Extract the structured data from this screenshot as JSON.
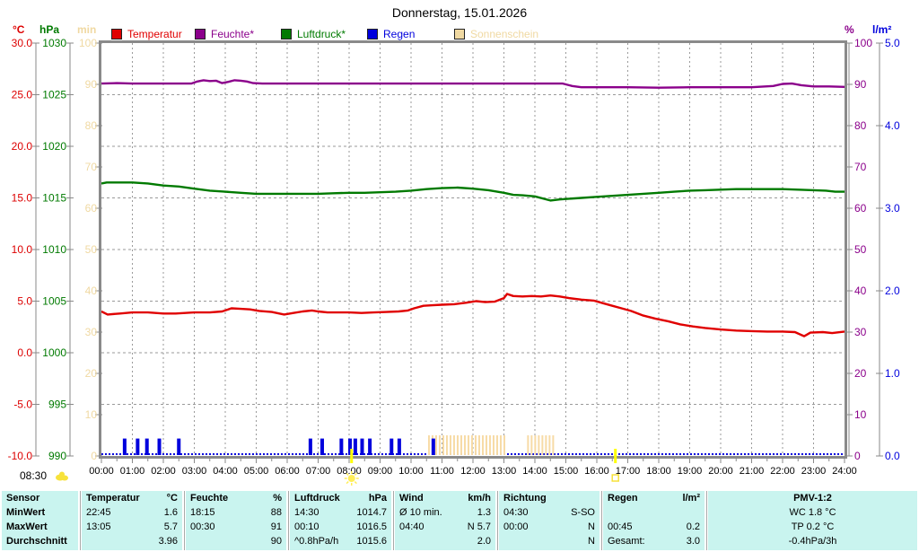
{
  "title": "Donnerstag, 15.01.2026",
  "legend": [
    {
      "label": "Temperatur",
      "color": "#e00000",
      "x": 124
    },
    {
      "label": "Feuchte*",
      "color": "#8b008b",
      "x": 217
    },
    {
      "label": "Luftdruck*",
      "color": "#007a00",
      "x": 313
    },
    {
      "label": "Regen",
      "color": "#0000dd",
      "x": 409
    },
    {
      "label": "Sonnenschein",
      "color": "#f0d9a2",
      "x": 506
    }
  ],
  "axes": {
    "left": [
      {
        "unit": "°C",
        "color": "#dd0000",
        "min": -10,
        "max": 30,
        "line_x": 40,
        "tick_labels": [
          "30.0",
          "25.0",
          "20.0",
          "15.0",
          "10.0",
          "5.0",
          "0.0",
          "-5.0",
          "-10.0"
        ]
      },
      {
        "unit": "hPa",
        "color": "#007a00",
        "min": 990,
        "max": 1030,
        "line_x": 78,
        "tick_labels": [
          "1030",
          "1025",
          "1020",
          "1015",
          "1010",
          "1005",
          "1000",
          "995",
          "990"
        ]
      },
      {
        "unit": "min",
        "color": "#f0d9a2",
        "min": 0,
        "max": 100,
        "line_x": 110,
        "tick_labels": [
          "100",
          "90",
          "80",
          "70",
          "60",
          "50",
          "40",
          "30",
          "20",
          "10",
          "0"
        ]
      }
    ],
    "right": [
      {
        "unit": "%",
        "color": "#8b008b",
        "min": 0,
        "max": 100,
        "line_x": 946,
        "tick_labels": [
          "100",
          "90",
          "80",
          "70",
          "60",
          "50",
          "40",
          "30",
          "20",
          "10",
          "0"
        ]
      },
      {
        "unit": "l/m²",
        "color": "#0000dd",
        "min": 0,
        "max": 5,
        "line_x": 980,
        "tick_labels": [
          "5.0",
          "4.0",
          "3.0",
          "2.0",
          "1.0",
          "0.0"
        ]
      }
    ]
  },
  "x_labels": [
    "00:00",
    "01:00",
    "02:00",
    "03:00",
    "04:00",
    "05:00",
    "06:00",
    "07:00",
    "08:00",
    "09:00",
    "10:00",
    "11:00",
    "12:00",
    "13:00",
    "14:00",
    "15:00",
    "16:00",
    "17:00",
    "18:00",
    "19:00",
    "20:00",
    "21:00",
    "22:00",
    "23:00",
    "24:00"
  ],
  "sun": {
    "time_label": "08:30",
    "sunrise_h": 8.08,
    "sunset_h": 16.6
  },
  "chart_data": {
    "type": "line",
    "x_unit": "hours",
    "x_range": [
      0,
      24
    ],
    "grid": {
      "vertical_every_h": 1,
      "horizontal_every_degC": 5
    },
    "series": [
      {
        "name": "Temperatur",
        "unit": "°C",
        "color": "#e00000",
        "axis_min": -10,
        "axis_max": 30,
        "points": [
          [
            0,
            4.0
          ],
          [
            0.2,
            3.7
          ],
          [
            0.6,
            3.8
          ],
          [
            1,
            3.9
          ],
          [
            1.5,
            3.9
          ],
          [
            2,
            3.8
          ],
          [
            2.4,
            3.8
          ],
          [
            3,
            3.9
          ],
          [
            3.5,
            3.9
          ],
          [
            3.9,
            4.0
          ],
          [
            4.2,
            4.3
          ],
          [
            4.5,
            4.25
          ],
          [
            4.8,
            4.2
          ],
          [
            5.1,
            4.05
          ],
          [
            5.5,
            3.95
          ],
          [
            5.9,
            3.7
          ],
          [
            6.2,
            3.85
          ],
          [
            6.5,
            4.0
          ],
          [
            6.8,
            4.1
          ],
          [
            7,
            4.0
          ],
          [
            7.3,
            3.9
          ],
          [
            7.7,
            3.9
          ],
          [
            8,
            3.9
          ],
          [
            8.4,
            3.85
          ],
          [
            8.8,
            3.9
          ],
          [
            9.2,
            3.95
          ],
          [
            9.6,
            4.0
          ],
          [
            9.9,
            4.1
          ],
          [
            10.1,
            4.3
          ],
          [
            10.4,
            4.55
          ],
          [
            10.7,
            4.6
          ],
          [
            11,
            4.65
          ],
          [
            11.4,
            4.7
          ],
          [
            11.8,
            4.85
          ],
          [
            12.1,
            5.0
          ],
          [
            12.4,
            4.9
          ],
          [
            12.7,
            4.95
          ],
          [
            13,
            5.3
          ],
          [
            13.1,
            5.7
          ],
          [
            13.3,
            5.5
          ],
          [
            13.6,
            5.45
          ],
          [
            13.9,
            5.5
          ],
          [
            14.2,
            5.45
          ],
          [
            14.5,
            5.55
          ],
          [
            14.8,
            5.45
          ],
          [
            15.1,
            5.3
          ],
          [
            15.5,
            5.15
          ],
          [
            15.9,
            5.05
          ],
          [
            16.2,
            4.8
          ],
          [
            16.5,
            4.55
          ],
          [
            16.8,
            4.3
          ],
          [
            17.1,
            4.05
          ],
          [
            17.5,
            3.6
          ],
          [
            17.9,
            3.3
          ],
          [
            18.3,
            3.05
          ],
          [
            18.7,
            2.75
          ],
          [
            19.1,
            2.55
          ],
          [
            19.5,
            2.4
          ],
          [
            20,
            2.25
          ],
          [
            20.5,
            2.15
          ],
          [
            21,
            2.1
          ],
          [
            21.5,
            2.05
          ],
          [
            22,
            2.05
          ],
          [
            22.4,
            2.0
          ],
          [
            22.7,
            1.6
          ],
          [
            22.9,
            1.95
          ],
          [
            23.3,
            2.0
          ],
          [
            23.6,
            1.9
          ],
          [
            24,
            2.05
          ]
        ]
      },
      {
        "name": "Feuchte",
        "unit": "%",
        "color": "#8b008b",
        "axis_min": 0,
        "axis_max": 100,
        "points": [
          [
            0,
            90.2
          ],
          [
            0.5,
            90.3
          ],
          [
            1,
            90.2
          ],
          [
            2,
            90.2
          ],
          [
            2.9,
            90.2
          ],
          [
            3.1,
            90.7
          ],
          [
            3.3,
            91.0
          ],
          [
            3.5,
            90.8
          ],
          [
            3.7,
            90.9
          ],
          [
            3.9,
            90.3
          ],
          [
            4.1,
            90.6
          ],
          [
            4.3,
            91.0
          ],
          [
            4.5,
            90.9
          ],
          [
            4.7,
            90.7
          ],
          [
            4.9,
            90.3
          ],
          [
            5.2,
            90.2
          ],
          [
            6,
            90.2
          ],
          [
            7,
            90.2
          ],
          [
            8,
            90.2
          ],
          [
            9,
            90.2
          ],
          [
            10,
            90.2
          ],
          [
            11,
            90.2
          ],
          [
            12,
            90.2
          ],
          [
            13,
            90.2
          ],
          [
            14,
            90.2
          ],
          [
            14.9,
            90.2
          ],
          [
            15.2,
            89.6
          ],
          [
            15.5,
            89.3
          ],
          [
            16,
            89.3
          ],
          [
            17,
            89.3
          ],
          [
            18,
            89.2
          ],
          [
            19,
            89.3
          ],
          [
            20,
            89.3
          ],
          [
            21,
            89.3
          ],
          [
            21.7,
            89.6
          ],
          [
            22,
            90.1
          ],
          [
            22.3,
            90.2
          ],
          [
            22.6,
            89.8
          ],
          [
            23,
            89.5
          ],
          [
            23.5,
            89.5
          ],
          [
            24,
            89.4
          ]
        ]
      },
      {
        "name": "Luftdruck",
        "unit": "hPa",
        "color": "#007a00",
        "axis_min": 990,
        "axis_max": 1030,
        "points": [
          [
            0,
            1016.4
          ],
          [
            0.17,
            1016.5
          ],
          [
            0.5,
            1016.5
          ],
          [
            1,
            1016.5
          ],
          [
            1.5,
            1016.4
          ],
          [
            2,
            1016.2
          ],
          [
            2.5,
            1016.1
          ],
          [
            3,
            1015.9
          ],
          [
            3.5,
            1015.7
          ],
          [
            4,
            1015.6
          ],
          [
            4.5,
            1015.5
          ],
          [
            5,
            1015.4
          ],
          [
            5.5,
            1015.4
          ],
          [
            6,
            1015.4
          ],
          [
            6.5,
            1015.4
          ],
          [
            7,
            1015.4
          ],
          [
            7.5,
            1015.45
          ],
          [
            8,
            1015.5
          ],
          [
            8.5,
            1015.5
          ],
          [
            9,
            1015.55
          ],
          [
            9.5,
            1015.6
          ],
          [
            10,
            1015.7
          ],
          [
            10.5,
            1015.85
          ],
          [
            11,
            1015.95
          ],
          [
            11.5,
            1016.0
          ],
          [
            12,
            1015.9
          ],
          [
            12.5,
            1015.75
          ],
          [
            13,
            1015.5
          ],
          [
            13.3,
            1015.3
          ],
          [
            13.6,
            1015.25
          ],
          [
            14,
            1015.15
          ],
          [
            14.5,
            1014.75
          ],
          [
            14.8,
            1014.85
          ],
          [
            15,
            1014.9
          ],
          [
            15.5,
            1015.0
          ],
          [
            16,
            1015.1
          ],
          [
            16.5,
            1015.2
          ],
          [
            17,
            1015.3
          ],
          [
            17.5,
            1015.4
          ],
          [
            18,
            1015.5
          ],
          [
            18.5,
            1015.6
          ],
          [
            19,
            1015.7
          ],
          [
            19.5,
            1015.75
          ],
          [
            20,
            1015.8
          ],
          [
            20.5,
            1015.85
          ],
          [
            21,
            1015.85
          ],
          [
            21.5,
            1015.85
          ],
          [
            22,
            1015.85
          ],
          [
            22.5,
            1015.8
          ],
          [
            23,
            1015.75
          ],
          [
            23.4,
            1015.7
          ],
          [
            23.7,
            1015.6
          ],
          [
            24,
            1015.6
          ]
        ]
      }
    ],
    "rain_events": {
      "name": "Regen",
      "unit": "l/m²",
      "color": "#0000dd",
      "amount_each": 0.2,
      "times_h": [
        0.75,
        1.17,
        1.47,
        1.87,
        2.5,
        6.75,
        7.13,
        7.75,
        8.03,
        8.2,
        8.42,
        8.67,
        9.37,
        9.62,
        10.72
      ],
      "total": 3.0
    },
    "sunshine_intervals": {
      "name": "Sonnenschein",
      "unit": "min",
      "color": "#f7dba6",
      "intervals_h": [
        [
          10.55,
          13.05
        ],
        [
          13.75,
          14.6
        ]
      ]
    }
  },
  "table": {
    "row_labels": [
      "Sensor",
      "MinWert",
      "MaxWert",
      "Durchschnitt"
    ],
    "columns": [
      {
        "name": "Temperatur",
        "unit": "°C",
        "rows": [
          [
            "22:45",
            "1.6"
          ],
          [
            "13:05",
            "5.7"
          ],
          [
            "",
            "3.96"
          ]
        ]
      },
      {
        "name": "Feuchte",
        "unit": "%",
        "rows": [
          [
            "18:15",
            "88"
          ],
          [
            "00:30",
            "91"
          ],
          [
            "",
            "90"
          ]
        ]
      },
      {
        "name": "Luftdruck",
        "unit": "hPa",
        "rows": [
          [
            "14:30",
            "1014.7"
          ],
          [
            "00:10",
            "1016.5"
          ],
          [
            "^0.8hPa/h",
            "1015.6"
          ]
        ]
      },
      {
        "name": "Wind",
        "unit": "km/h",
        "rows": [
          [
            "Ø 10 min.",
            "1.3"
          ],
          [
            "04:40",
            "N 5.7"
          ],
          [
            "",
            "2.0"
          ]
        ]
      },
      {
        "name": "Richtung",
        "unit": "",
        "rows": [
          [
            "04:30",
            "S-SO"
          ],
          [
            "00:00",
            "N"
          ],
          [
            "",
            "N"
          ]
        ]
      },
      {
        "name": "Regen",
        "unit": "l/m²",
        "rows": [
          [
            "",
            ""
          ],
          [
            "00:45",
            "0.2"
          ],
          [
            "Gesamt:",
            "3.0"
          ]
        ]
      },
      {
        "name": "PMV-1:2",
        "unit": "",
        "centered": true,
        "rows": [
          [
            "WC 1.8 °C"
          ],
          [
            "TP 0.2 °C"
          ],
          [
            "-0.4hPa/3h"
          ]
        ]
      }
    ]
  }
}
